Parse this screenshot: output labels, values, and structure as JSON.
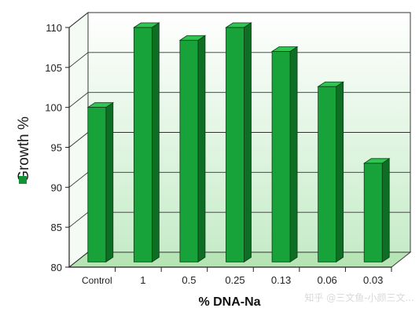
{
  "chart_data": {
    "type": "bar",
    "title": "",
    "xlabel": "% DNA-Na",
    "ylabel": "Growth %",
    "categories": [
      "Control",
      "1",
      "0.5",
      "0.25",
      "0.13",
      "0.06",
      "0.03"
    ],
    "series": [
      {
        "name": "",
        "values": [
          100,
          110,
          108.4,
          110,
          107,
          102.6,
          93
        ]
      }
    ],
    "ylim": [
      80,
      110
    ],
    "yticks": [
      80,
      85,
      90,
      95,
      100,
      105,
      110
    ],
    "grid": true,
    "legend": "left, rotated with y-axis label",
    "colors": {
      "bar_front": "#18a23a",
      "bar_side": "#0d6e24",
      "bar_top": "#2fc552",
      "bar_edge": "#0b3d16",
      "panel_top": "#ffffff",
      "panel_bottom": "#c7ecc9",
      "floor": "#b7e4b5",
      "legend_swatch": "#129334"
    }
  },
  "watermark": "知乎 @三文鱼-小颜三文..."
}
